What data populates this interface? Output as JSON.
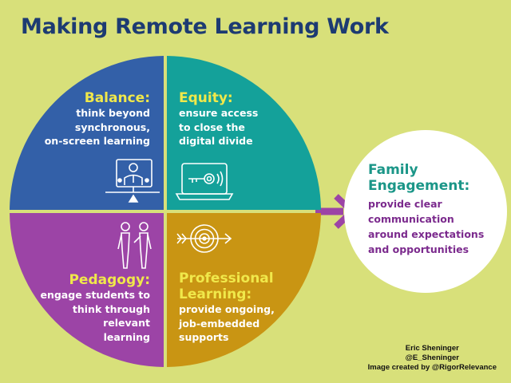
{
  "title": "Making Remote Learning Work",
  "colors": {
    "background": "#d8e07a",
    "title": "#1d3b72",
    "balance": "#3360a8",
    "equity": "#14a19a",
    "pedagogy": "#9c44a6",
    "professional": "#c99513",
    "heading_yellow": "#f0e84a",
    "family_heading": "#1b9688",
    "family_body": "#7b2a8d",
    "arrow": "#9c44a6"
  },
  "quadrants": {
    "balance": {
      "heading": "Balance:",
      "body": "think beyond\nsynchronous,\non-screen learning",
      "icon": "teacher-on-screen-icon"
    },
    "equity": {
      "heading": "Equity:",
      "body": "ensure access\nto close the\ndigital divide",
      "icon": "laptop-key-icon"
    },
    "pedagogy": {
      "heading": "Pedagogy:",
      "body": "engage students to\nthink through\nrelevant\nlearning",
      "icon": "people-talking-icon"
    },
    "professional": {
      "heading_line1": "Professional",
      "heading_line2": "Learning:",
      "body": "provide ongoing,\njob-embedded\nsupports",
      "icon": "target-arrow-icon"
    }
  },
  "family": {
    "heading": "Family\nEngagement:",
    "body": "provide clear\ncommunication\naround expectations\nand opportunities"
  },
  "credits": {
    "line1": "Eric Sheninger",
    "line2": "@E_Sheninger",
    "line3": "Image created by @RigorRelevance"
  }
}
